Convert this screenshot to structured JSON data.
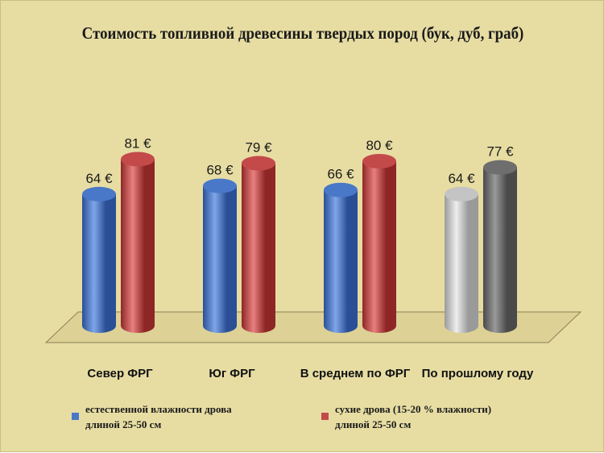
{
  "colors": {
    "background": "#e7dda3",
    "natural": "#4a78c8",
    "natural_highlight": "#7fa6ea",
    "natural_shadow": "#2a4f96",
    "dry": "#c44a4a",
    "dry_highlight": "#e88080",
    "dry_shadow": "#8e2626",
    "last_year_light": "#c4c4c4",
    "last_year_light_highlight": "#eeeeee",
    "last_year_dark": "#6e6e6e",
    "last_year_dark_highlight": "#9a9a9a"
  },
  "chart_data": {
    "type": "bar",
    "style": "3d-cylinder",
    "title": "Стоимость топливной древесины твердых пород (бук, дуб, граб)",
    "categories": [
      "Север ФРГ",
      "Юг ФРГ",
      "В среднем по ФРГ",
      "По прошлому году"
    ],
    "series": [
      {
        "name": "естественной влажности дрова длиной 25-50 см",
        "values": [
          64,
          68,
          66,
          64
        ],
        "labels": [
          "64 €",
          "68 €",
          "66 €",
          "64 €"
        ]
      },
      {
        "name": "сухие дрова (15-20 % влажности) длиной 25-50 см",
        "values": [
          81,
          79,
          80,
          77
        ],
        "labels": [
          "81 €",
          "79 €",
          "80 €",
          "77 €"
        ]
      }
    ],
    "grid": false,
    "legend_position": "bottom"
  },
  "legend": {
    "natural_line1": "естественной влажности дрова",
    "natural_line2": "длиной 25-50 см",
    "dry_line1": "сухие дрова (15-20 % влажности)",
    "dry_line2": "длиной 25-50 см"
  }
}
